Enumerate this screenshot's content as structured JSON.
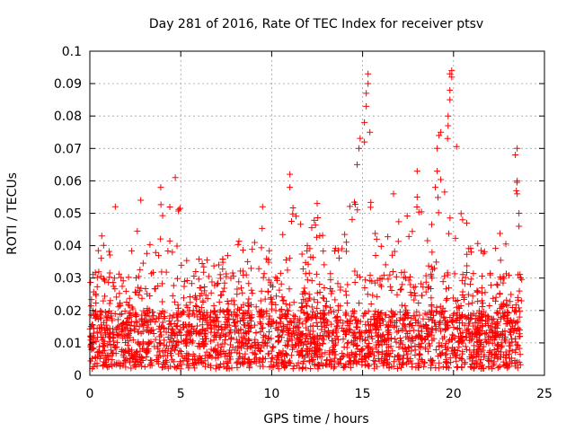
{
  "chart_data": {
    "type": "scatter",
    "title": "Day 281 of 2016, Rate Of TEC Index for receiver ptsv",
    "xlabel": "GPS time / hours",
    "ylabel": "ROTI / TECUs",
    "xlim": [
      0,
      25
    ],
    "ylim": [
      0,
      0.1
    ],
    "xticks": [
      0,
      5,
      10,
      15,
      20,
      25
    ],
    "xtick_labels": [
      "0",
      "5",
      "10",
      "15",
      "20",
      "25"
    ],
    "yticks": [
      0,
      0.01,
      0.02,
      0.03,
      0.04,
      0.05,
      0.06,
      0.07,
      0.08,
      0.09,
      0.1
    ],
    "ytick_labels": [
      "0",
      "0.01",
      "0.02",
      "0.03",
      "0.04",
      "0.05",
      "0.06",
      "0.07",
      "0.08",
      "0.09",
      "0.1"
    ],
    "grid": true,
    "marker": "+",
    "color": "#ff0000",
    "time_range_hours": [
      0,
      23.75
    ],
    "baseline_range": [
      0.002,
      0.02
    ],
    "envelope": [
      {
        "x": 0.0,
        "y": 0.03
      },
      {
        "x": 0.7,
        "y": 0.044
      },
      {
        "x": 1.3,
        "y": 0.035
      },
      {
        "x": 2.0,
        "y": 0.031
      },
      {
        "x": 2.8,
        "y": 0.053
      },
      {
        "x": 3.5,
        "y": 0.04
      },
      {
        "x": 4.0,
        "y": 0.058
      },
      {
        "x": 4.7,
        "y": 0.061
      },
      {
        "x": 5.5,
        "y": 0.036
      },
      {
        "x": 6.2,
        "y": 0.037
      },
      {
        "x": 7.0,
        "y": 0.034
      },
      {
        "x": 8.0,
        "y": 0.048
      },
      {
        "x": 8.8,
        "y": 0.037
      },
      {
        "x": 9.5,
        "y": 0.052
      },
      {
        "x": 10.2,
        "y": 0.03
      },
      {
        "x": 11.0,
        "y": 0.062
      },
      {
        "x": 11.8,
        "y": 0.042
      },
      {
        "x": 12.5,
        "y": 0.053
      },
      {
        "x": 13.2,
        "y": 0.037
      },
      {
        "x": 14.0,
        "y": 0.045
      },
      {
        "x": 14.7,
        "y": 0.065
      },
      {
        "x": 15.2,
        "y": 0.093
      },
      {
        "x": 15.8,
        "y": 0.04
      },
      {
        "x": 16.5,
        "y": 0.045
      },
      {
        "x": 17.2,
        "y": 0.056
      },
      {
        "x": 18.0,
        "y": 0.063
      },
      {
        "x": 18.6,
        "y": 0.045
      },
      {
        "x": 19.1,
        "y": 0.075
      },
      {
        "x": 19.9,
        "y": 0.094
      },
      {
        "x": 20.5,
        "y": 0.048
      },
      {
        "x": 21.2,
        "y": 0.046
      },
      {
        "x": 22.0,
        "y": 0.038
      },
      {
        "x": 22.7,
        "y": 0.05
      },
      {
        "x": 23.4,
        "y": 0.07
      },
      {
        "x": 23.75,
        "y": 0.04
      }
    ],
    "notable_points": [
      {
        "x": 1.4,
        "y": 0.052
      },
      {
        "x": 2.8,
        "y": 0.054
      },
      {
        "x": 3.9,
        "y": 0.058
      },
      {
        "x": 4.7,
        "y": 0.061
      },
      {
        "x": 9.5,
        "y": 0.052
      },
      {
        "x": 11.0,
        "y": 0.062
      },
      {
        "x": 11.0,
        "y": 0.058
      },
      {
        "x": 12.5,
        "y": 0.053
      },
      {
        "x": 14.7,
        "y": 0.065
      },
      {
        "x": 14.8,
        "y": 0.07
      },
      {
        "x": 15.1,
        "y": 0.072
      },
      {
        "x": 15.1,
        "y": 0.078
      },
      {
        "x": 15.2,
        "y": 0.083
      },
      {
        "x": 15.2,
        "y": 0.087
      },
      {
        "x": 15.3,
        "y": 0.09
      },
      {
        "x": 15.3,
        "y": 0.093
      },
      {
        "x": 15.4,
        "y": 0.075
      },
      {
        "x": 16.7,
        "y": 0.056
      },
      {
        "x": 18.0,
        "y": 0.063
      },
      {
        "x": 18.0,
        "y": 0.055
      },
      {
        "x": 19.0,
        "y": 0.058
      },
      {
        "x": 19.1,
        "y": 0.063
      },
      {
        "x": 19.1,
        "y": 0.07
      },
      {
        "x": 19.2,
        "y": 0.074
      },
      {
        "x": 19.3,
        "y": 0.075
      },
      {
        "x": 19.7,
        "y": 0.077
      },
      {
        "x": 19.7,
        "y": 0.08
      },
      {
        "x": 19.8,
        "y": 0.085
      },
      {
        "x": 19.8,
        "y": 0.088
      },
      {
        "x": 19.9,
        "y": 0.092
      },
      {
        "x": 19.9,
        "y": 0.094
      },
      {
        "x": 19.8,
        "y": 0.093
      },
      {
        "x": 20.5,
        "y": 0.048
      },
      {
        "x": 23.4,
        "y": 0.068
      },
      {
        "x": 23.5,
        "y": 0.07
      },
      {
        "x": 23.5,
        "y": 0.06
      },
      {
        "x": 23.5,
        "y": 0.056
      },
      {
        "x": 23.6,
        "y": 0.05
      },
      {
        "x": 23.6,
        "y": 0.046
      }
    ]
  }
}
